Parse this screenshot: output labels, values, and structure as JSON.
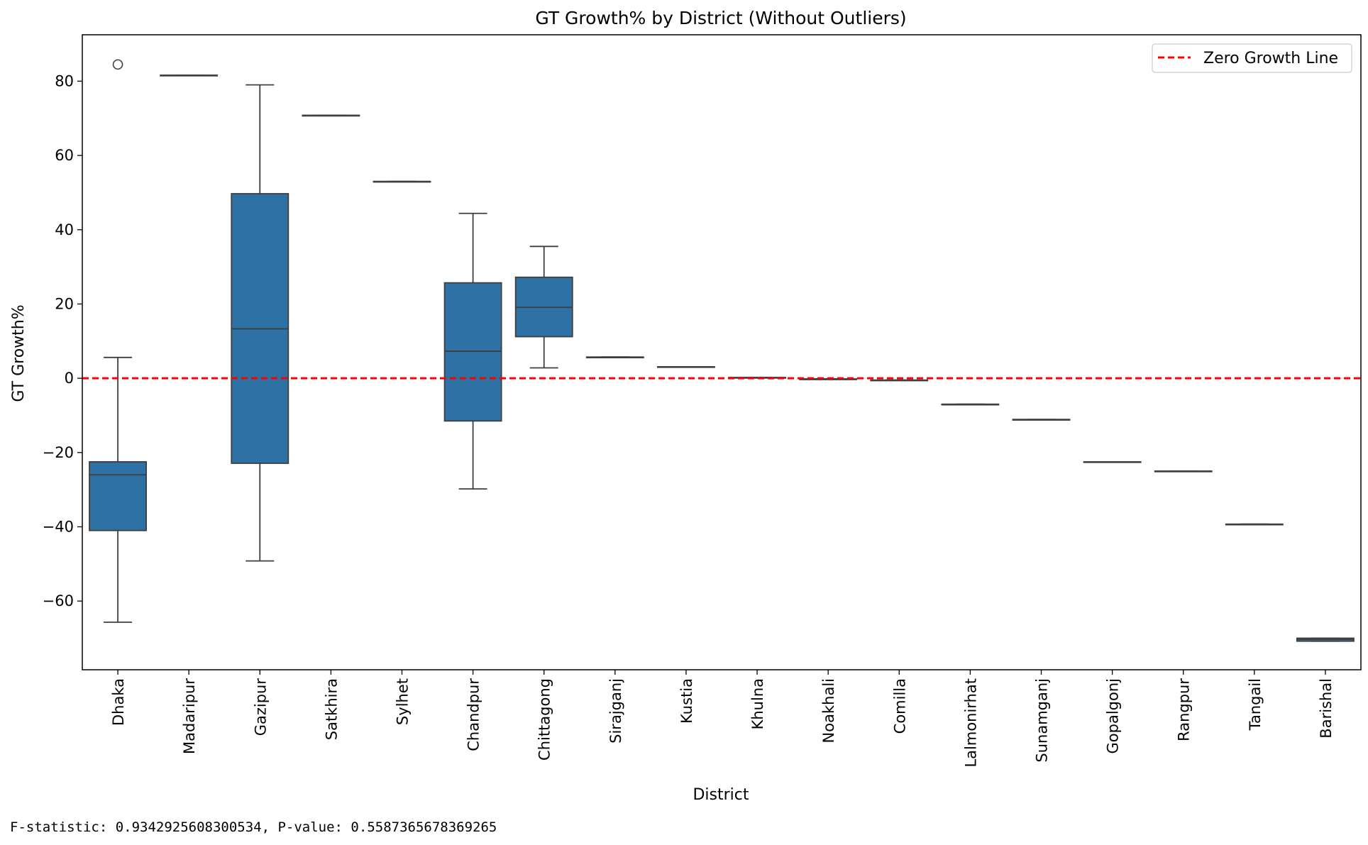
{
  "chart_data": {
    "type": "box",
    "title": "GT Growth% by District (Without Outliers)",
    "xlabel": "District",
    "ylabel": "GT Growth%",
    "ylim": [
      -78.5,
      92.5
    ],
    "yticks": [
      -60,
      -40,
      -20,
      0,
      20,
      40,
      60,
      80
    ],
    "reference_line": {
      "y": 0,
      "label": "Zero Growth Line",
      "color": "#ff0000",
      "style": "dashed"
    },
    "legend_position": "top-right",
    "box_color": "#2e72a5",
    "districts": [
      {
        "name": "Dhaka",
        "whisker_low": -65.7,
        "q1": -41.0,
        "median": -26.0,
        "q3": -22.5,
        "whisker_high": 5.6,
        "outliers": [
          84.5
        ]
      },
      {
        "name": "Madaripur",
        "whisker_low": 81.6,
        "q1": 81.6,
        "median": 81.6,
        "q3": 81.6,
        "whisker_high": 81.6,
        "outliers": []
      },
      {
        "name": "Gazipur",
        "whisker_low": -49.2,
        "q1": -22.9,
        "median": 13.3,
        "q3": 49.7,
        "whisker_high": 79.0,
        "outliers": []
      },
      {
        "name": "Satkhira",
        "whisker_low": 70.8,
        "q1": 70.8,
        "median": 70.8,
        "q3": 70.8,
        "whisker_high": 70.8,
        "outliers": []
      },
      {
        "name": "Sylhet",
        "whisker_low": 53.0,
        "q1": 53.0,
        "median": 53.0,
        "q3": 53.0,
        "whisker_high": 53.0,
        "outliers": []
      },
      {
        "name": "Chandpur",
        "whisker_low": -29.8,
        "q1": -11.5,
        "median": 7.3,
        "q3": 25.7,
        "whisker_high": 44.4,
        "outliers": []
      },
      {
        "name": "Chittagong",
        "whisker_low": 2.8,
        "q1": 11.2,
        "median": 19.1,
        "q3": 27.2,
        "whisker_high": 35.5,
        "outliers": []
      },
      {
        "name": "Sirajganj",
        "whisker_low": 5.7,
        "q1": 5.7,
        "median": 5.7,
        "q3": 5.7,
        "whisker_high": 5.7,
        "outliers": []
      },
      {
        "name": "Kustia",
        "whisker_low": 3.1,
        "q1": 3.1,
        "median": 3.1,
        "q3": 3.1,
        "whisker_high": 3.1,
        "outliers": []
      },
      {
        "name": "Khulna",
        "whisker_low": 0.2,
        "q1": 0.2,
        "median": 0.2,
        "q3": 0.2,
        "whisker_high": 0.2,
        "outliers": []
      },
      {
        "name": "Noakhali",
        "whisker_low": -0.2,
        "q1": -0.2,
        "median": -0.2,
        "q3": -0.2,
        "whisker_high": -0.2,
        "outliers": []
      },
      {
        "name": "Comilla",
        "whisker_low": -0.5,
        "q1": -0.5,
        "median": -0.5,
        "q3": -0.5,
        "whisker_high": -0.5,
        "outliers": []
      },
      {
        "name": "Lalmonirhat",
        "whisker_low": -7.0,
        "q1": -7.0,
        "median": -7.0,
        "q3": -7.0,
        "whisker_high": -7.0,
        "outliers": []
      },
      {
        "name": "Sunamganj",
        "whisker_low": -11.1,
        "q1": -11.1,
        "median": -11.1,
        "q3": -11.1,
        "whisker_high": -11.1,
        "outliers": []
      },
      {
        "name": "Gopalgonj",
        "whisker_low": -22.5,
        "q1": -22.5,
        "median": -22.5,
        "q3": -22.5,
        "whisker_high": -22.5,
        "outliers": []
      },
      {
        "name": "Rangpur",
        "whisker_low": -25.0,
        "q1": -25.0,
        "median": -25.0,
        "q3": -25.0,
        "whisker_high": -25.0,
        "outliers": []
      },
      {
        "name": "Tangail",
        "whisker_low": -39.3,
        "q1": -39.3,
        "median": -39.3,
        "q3": -39.3,
        "whisker_high": -39.3,
        "outliers": []
      },
      {
        "name": "Barishal",
        "whisker_low": -70.8,
        "q1": -70.8,
        "median": -70.3,
        "q3": -70.0,
        "whisker_high": -70.0,
        "outliers": []
      }
    ]
  },
  "output": {
    "stats_line": "F-statistic: 0.9342925608300534, P-value: 0.5587365678369265"
  }
}
